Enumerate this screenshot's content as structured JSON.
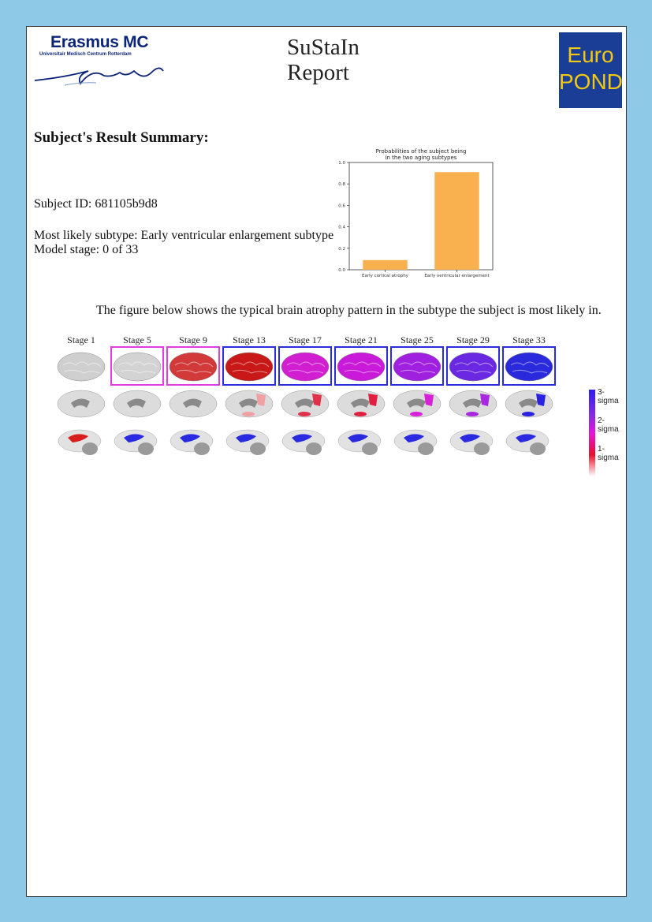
{
  "header": {
    "institution_name": "Erasmus MC",
    "institution_subtitle": "Universitair Medisch Centrum Rotterdam",
    "report_title_line1": "SuStaIn",
    "report_title_line2": "Report",
    "partner_logo_line1": "Euro",
    "partner_logo_line2": "POND"
  },
  "summary": {
    "heading": "Subject's Result Summary:",
    "subject_id": "Subject ID: 681105b9d8",
    "subtype": "Most likely subtype: Early ventricular enlargement subtype",
    "stage": "Model stage: 0 of 33"
  },
  "chart_data": {
    "type": "bar",
    "title": "Probabilities of the subject being",
    "subtitle": "in the two aging subtypes",
    "categories": [
      "Early cortical atrophy",
      "Early ventricular enlargement"
    ],
    "values": [
      0.09,
      0.91
    ],
    "ylim": [
      0,
      1.0
    ],
    "yticks": [
      0.0,
      0.2,
      0.4,
      0.6,
      0.8,
      1.0
    ],
    "ytick_labels": [
      "0.0",
      "0.2",
      "0.4",
      "0.6",
      "0.8",
      "1.0"
    ],
    "bar_color": "#f9b04e",
    "xlabel": "",
    "ylabel": ""
  },
  "figure": {
    "caption": "The figure below shows the typical brain atrophy pattern in the subtype the subject is most likely in.",
    "stages": [
      "Stage 1",
      "Stage 5",
      "Stage 9",
      "Stage 13",
      "Stage 17",
      "Stage 21",
      "Stage 25",
      "Stage 29",
      "Stage 33"
    ],
    "legend": [
      "3-sigma",
      "2-sigma",
      "1-sigma"
    ],
    "colors": {
      "magenta_box": "#e23be0",
      "blue_box": "#2a2ce0",
      "sigma1": "#e01e1e",
      "sigma2": "#d21ee0",
      "sigma3": "#2a22e0"
    }
  }
}
